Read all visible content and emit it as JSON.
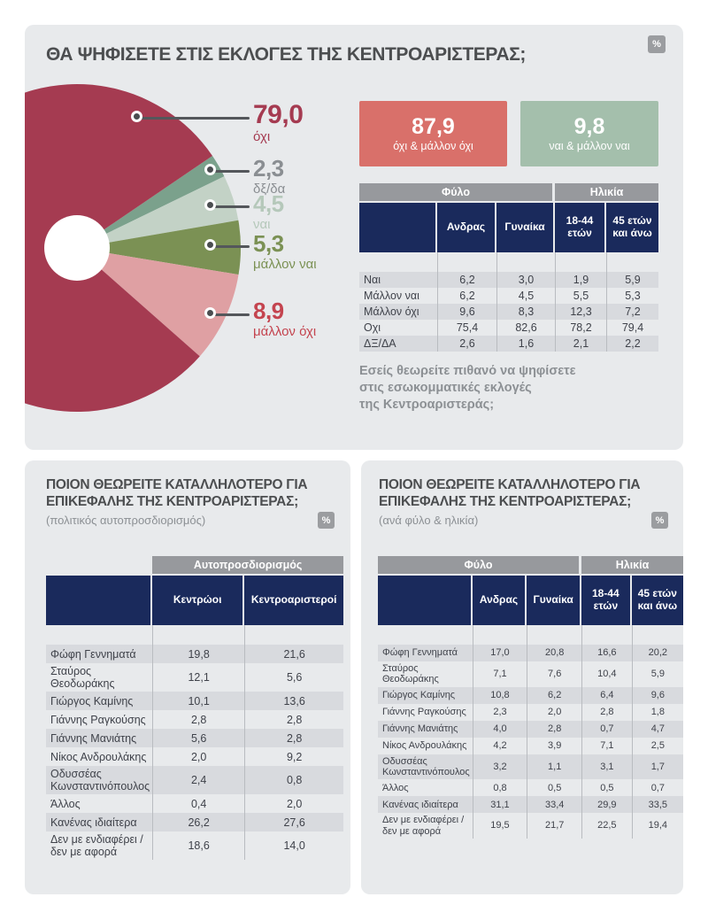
{
  "top_panel": {
    "title": "ΘΑ ΨΗΦΙΣΕΤΕ ΣΤΙΣ ΕΚΛΟΓΕΣ ΤΗΣ ΚΕΝΤΡΟΑΡΙΣΤΕΡΑΣ;",
    "badge": "%",
    "summary_boxes": [
      {
        "value": "87,9",
        "label": "όχι & μάλλον όχι",
        "color": "#d9706a"
      },
      {
        "value": "9,8",
        "label": "ναι & μάλλον ναι",
        "color": "#a4bfac"
      }
    ],
    "footnote_lines": [
      "Εσείς θεωρείτε πιθανό να ψηφίσετε",
      "στις εσωκομματικές εκλογές",
      "της Κεντροαριστεράς;"
    ]
  },
  "chart_data": {
    "type": "pie",
    "style": "donut",
    "title": "ΘΑ ΨΗΦΙΣΕΤΕ ΣΤΙΣ ΕΚΛΟΓΕΣ ΤΗΣ ΚΕΝΤΡΟΑΡΙΣΤΕΡΑΣ;",
    "unit": "%",
    "categories": [
      "όχι",
      "δξ/δα",
      "ναι",
      "μάλλον ναι",
      "μάλλον όχι"
    ],
    "values": [
      79.0,
      2.3,
      4.5,
      5.3,
      8.9
    ],
    "display_values": [
      "79,0",
      "2,3",
      "4,5",
      "5,3",
      "8,9"
    ],
    "colors": [
      "#a53b51",
      "#7ba18c",
      "#c3d2c6",
      "#7b9154",
      "#dfa0a3"
    ],
    "label_colors": [
      "#a53b51",
      "#8a8e92",
      "#b5c8ba",
      "#7b9154",
      "#c4444f"
    ],
    "hole_color": "#ffffff",
    "draw_order": [
      1,
      2,
      3,
      4,
      0
    ],
    "start_angle_deg": -34.2,
    "legend_position": "right"
  },
  "top_table": {
    "group_headers": [
      {
        "label": "Φύλο",
        "span": 3
      },
      {
        "label": "Ηλικία",
        "span": 2
      }
    ],
    "columns": [
      "",
      "Ανδρας",
      "Γυναίκα",
      "18-44 ετών",
      "45 ετών και άνω"
    ],
    "rows": [
      {
        "label": "Ναι",
        "values": [
          "6,2",
          "3,0",
          "1,9",
          "5,9"
        ]
      },
      {
        "label": "Μάλλον ναι",
        "values": [
          "6,2",
          "4,5",
          "5,5",
          "5,3"
        ]
      },
      {
        "label": "Μάλλον όχι",
        "values": [
          "9,6",
          "8,3",
          "12,3",
          "7,2"
        ]
      },
      {
        "label": "Οχι",
        "values": [
          "75,4",
          "82,6",
          "78,2",
          "79,4"
        ]
      },
      {
        "label": "ΔΞ/ΔΑ",
        "values": [
          "2,6",
          "1,6",
          "2,1",
          "2,2"
        ]
      }
    ]
  },
  "bottom_left": {
    "title_lines": [
      "ΠΟΙΟΝ ΘΕΩΡΕΙΤΕ ΚΑΤΑΛΛΗΛΟΤΕΡΟ ΓΙΑ",
      "ΕΠΙΚΕΦΑΛΗΣ ΤΗΣ ΚΕΝΤΡΟΑΡΙΣΤΕΡΑΣ;"
    ],
    "subtitle": "(πολιτικός αυτοπροσδιορισμός)",
    "badge": "%",
    "table": {
      "group_headers": [
        {
          "label": "",
          "span": 1
        },
        {
          "label": "Αυτοπροσδιορισμός",
          "span": 2
        }
      ],
      "columns": [
        "",
        "Κεντρώοι",
        "Κεντροαριστεροί"
      ],
      "rows": [
        {
          "label": "Φώφη Γεννηματά",
          "values": [
            "19,8",
            "21,6"
          ]
        },
        {
          "label": "Σταύρος Θεοδωράκης",
          "values": [
            "12,1",
            "5,6"
          ]
        },
        {
          "label": "Γιώργος Καμίνης",
          "values": [
            "10,1",
            "13,6"
          ]
        },
        {
          "label": "Γιάννης Ραγκούσης",
          "values": [
            "2,8",
            "2,8"
          ]
        },
        {
          "label": "Γιάννης Μανιάτης",
          "values": [
            "5,6",
            "2,8"
          ]
        },
        {
          "label": "Νίκος Ανδρουλάκης",
          "values": [
            "2,0",
            "9,2"
          ]
        },
        {
          "label": "Οδυσσέας Κωνσταντινόπουλος",
          "values": [
            "2,4",
            "0,8"
          ]
        },
        {
          "label": "Άλλος",
          "values": [
            "0,4",
            "2,0"
          ]
        },
        {
          "label": "Κανένας ιδιαίτερα",
          "values": [
            "26,2",
            "27,6"
          ]
        },
        {
          "label": "Δεν με ενδιαφέρει / δεν με αφορά",
          "values": [
            "18,6",
            "14,0"
          ]
        }
      ]
    }
  },
  "bottom_right": {
    "title_lines": [
      "ΠΟΙΟΝ ΘΕΩΡΕΙΤΕ ΚΑΤΑΛΛΗΛΟΤΕΡΟ ΓΙΑ",
      "ΕΠΙΚΕΦΑΛΗΣ ΤΗΣ ΚΕΝΤΡΟΑΡΙΣΤΕΡΑΣ;"
    ],
    "subtitle": "(ανά φύλο & ηλικία)",
    "badge": "%",
    "table": {
      "group_headers": [
        {
          "label": "Φύλο",
          "span": 3
        },
        {
          "label": "Ηλικία",
          "span": 2
        }
      ],
      "columns": [
        "",
        "Ανδρας",
        "Γυναίκα",
        "18-44 ετών",
        "45 ετών και άνω"
      ],
      "rows": [
        {
          "label": "Φώφη Γεννηματά",
          "values": [
            "17,0",
            "20,8",
            "16,6",
            "20,2"
          ]
        },
        {
          "label": "Σταύρος Θεοδωράκης",
          "values": [
            "7,1",
            "7,6",
            "10,4",
            "5,9"
          ]
        },
        {
          "label": "Γιώργος Καμίνης",
          "values": [
            "10,8",
            "6,2",
            "6,4",
            "9,6"
          ]
        },
        {
          "label": "Γιάννης Ραγκούσης",
          "values": [
            "2,3",
            "2,0",
            "2,8",
            "1,8"
          ]
        },
        {
          "label": "Γιάννης Μανιάτης",
          "values": [
            "4,0",
            "2,8",
            "0,7",
            "4,7"
          ]
        },
        {
          "label": "Νίκος Ανδρουλάκης",
          "values": [
            "4,2",
            "3,9",
            "7,1",
            "2,5"
          ]
        },
        {
          "label": "Οδυσσέας Κωνσταντινόπουλος",
          "values": [
            "3,2",
            "1,1",
            "3,1",
            "1,7"
          ]
        },
        {
          "label": "Άλλος",
          "values": [
            "0,8",
            "0,5",
            "0,5",
            "0,7"
          ]
        },
        {
          "label": "Κανένας ιδιαίτερα",
          "values": [
            "31,1",
            "33,4",
            "29,9",
            "33,5"
          ]
        },
        {
          "label": "Δεν με ενδιαφέρει / δεν με αφορά",
          "values": [
            "19,5",
            "21,7",
            "22,5",
            "19,4"
          ]
        }
      ]
    }
  }
}
